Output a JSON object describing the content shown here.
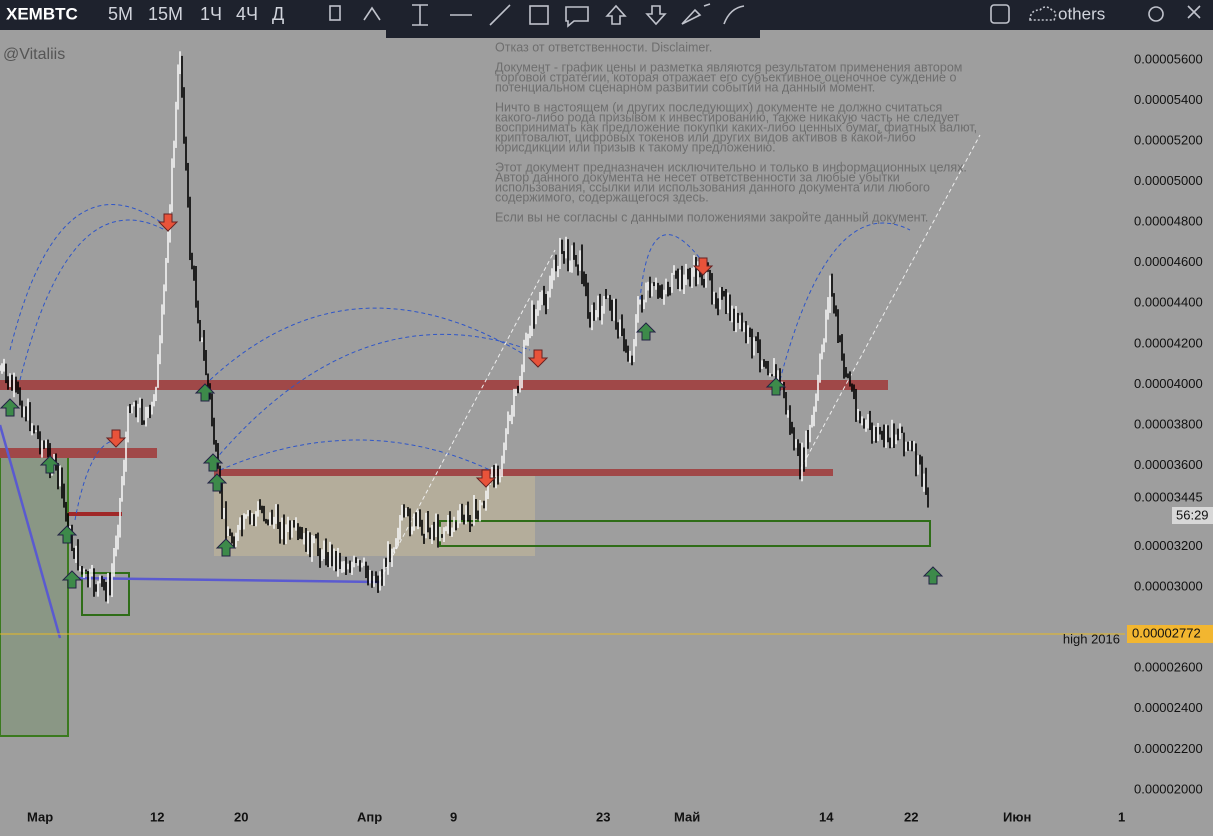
{
  "toolbar": {
    "symbol": "XEMBTC",
    "intervals": [
      "5M",
      "15M",
      "1Ч",
      "4Ч",
      "Д"
    ],
    "compare": "others"
  },
  "watermark": "@Vitaliis",
  "disclaimer": [
    "Отказ от ответственности. Disclaimer.",
    "Документ - график цены и разметка являются результатом применения автором",
    "торговой стратегии, которая отражает его субъективное оценочное суждение о",
    "потенциальном сценарном развитии событий на данный момент.",
    "Ничто в настоящем (и других последующих) документе не должно считаться",
    "какого-либо рода призывом к инвестированию, также никакую часть не следует",
    "воспринимать как предложение покупки каких-либо ценных бумаг, фиатных валют,",
    "криптовалют, цифровых токенов или других видов активов в какой-либо",
    "юрисдикции или призыв к такому предложению.",
    "Этот документ предназначен исключительно и только в информационных целях.",
    "Автор данного документа не несет ответственности за любые убытки",
    "использования, ссылки или использования данного документа или любого",
    "содержимого, содержащегося здесь.",
    "Если вы не согласны с данными положениями закройте данный документ."
  ],
  "price_axis": {
    "labels": [
      "0.00005600",
      "0.00005400",
      "0.00005200",
      "0.00005000",
      "0.00004800",
      "0.00004600",
      "0.00004400",
      "0.00004200",
      "0.00004000",
      "0.00003800",
      "0.00003600",
      "0.00003200",
      "0.00003000",
      "0.00002600",
      "0.00002400",
      "0.00002200",
      "0.00002000"
    ],
    "current_price": "0.00003445",
    "countdown": "56:29",
    "level_price": "0.00002772"
  },
  "level_label": "high 2016",
  "time_axis": [
    "Мар",
    "12",
    "20",
    "Апр",
    "9",
    "23",
    "Май",
    "14",
    "22",
    "Июн",
    "1"
  ]
}
